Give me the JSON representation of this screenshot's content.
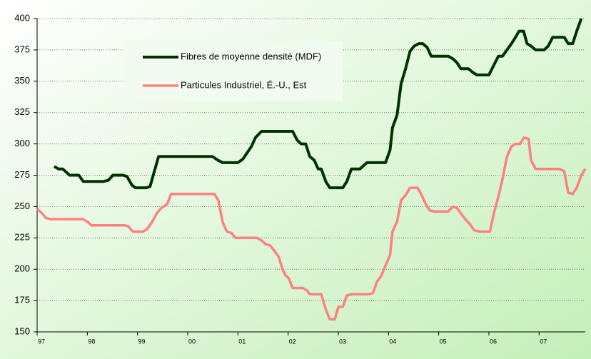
{
  "chart_data": {
    "type": "line",
    "xlim": [
      1997,
      2007.92
    ],
    "ylim": [
      150,
      400
    ],
    "yticks": [
      150,
      175,
      200,
      225,
      250,
      275,
      300,
      325,
      350,
      375,
      400
    ],
    "xticks": [
      {
        "value": 1997,
        "label": "97"
      },
      {
        "value": 1998,
        "label": "98"
      },
      {
        "value": 1999,
        "label": "99"
      },
      {
        "value": 2000,
        "label": "00"
      },
      {
        "value": 2001,
        "label": "01"
      },
      {
        "value": 2002,
        "label": "02"
      },
      {
        "value": 2003,
        "label": "03"
      },
      {
        "value": 2004,
        "label": "04"
      },
      {
        "value": 2005,
        "label": "05"
      },
      {
        "value": 2006,
        "label": "06"
      },
      {
        "value": 2007,
        "label": "07"
      }
    ],
    "grid": true,
    "series": [
      {
        "name": "Fibres de moyenne densité (MDF)",
        "color": "#003300",
        "x": [
          1997.34,
          1997.43,
          1997.51,
          1997.65,
          1997.83,
          1997.92,
          1998.32,
          1998.42,
          1998.51,
          1998.71,
          1998.79,
          1998.89,
          1998.96,
          1999.18,
          1999.25,
          1999.42,
          2000.49,
          2000.6,
          2000.7,
          2001.0,
          2001.1,
          2001.27,
          2001.35,
          2001.47,
          2002.09,
          2002.18,
          2002.26,
          2002.35,
          2002.43,
          2002.52,
          2002.6,
          2002.66,
          2002.75,
          2002.83,
          2003.09,
          2003.17,
          2003.26,
          2003.43,
          2003.57,
          2003.94,
          2004.03,
          2004.08,
          2004.17,
          2004.25,
          2004.34,
          2004.43,
          2004.51,
          2004.6,
          2004.68,
          2004.77,
          2004.85,
          2005.19,
          2005.28,
          2005.36,
          2005.44,
          2005.59,
          2005.68,
          2005.76,
          2006.0,
          2006.1,
          2006.19,
          2006.27,
          2006.36,
          2006.45,
          2006.53,
          2006.6,
          2006.69,
          2006.76,
          2006.84,
          2006.93,
          2007.1,
          2007.18,
          2007.27,
          2007.5,
          2007.58,
          2007.67,
          2007.75,
          2007.84
        ],
        "values": [
          282,
          280,
          280,
          275,
          275,
          270,
          270,
          271,
          275,
          275,
          274,
          267,
          265,
          265,
          266,
          290,
          290,
          287,
          285,
          285,
          288,
          298,
          305,
          310,
          310,
          303,
          300,
          300,
          290,
          287,
          280,
          280,
          270,
          265,
          265,
          270,
          280,
          280,
          285,
          285,
          295,
          313,
          323,
          348,
          360,
          374,
          378,
          380,
          380,
          377,
          370,
          370,
          368,
          365,
          360,
          360,
          357,
          355,
          355,
          363,
          370,
          370,
          375,
          380,
          385,
          390,
          390,
          380,
          378,
          375,
          375,
          378,
          385,
          385,
          380,
          380,
          390,
          400
        ]
      },
      {
        "name": "Particules Industriel, É.-U., Est",
        "color": "#ff8080",
        "x": [
          1997.0,
          1997.09,
          1997.17,
          1997.26,
          1997.91,
          1998.0,
          1998.08,
          1998.75,
          1998.82,
          1998.91,
          1999.11,
          1999.19,
          1999.28,
          1999.39,
          1999.48,
          1999.59,
          1999.67,
          2000.53,
          2000.61,
          2000.7,
          2000.78,
          2000.87,
          2000.95,
          2001.38,
          2001.47,
          2001.55,
          2001.64,
          2001.72,
          2001.81,
          2001.89,
          2001.95,
          2002.01,
          2002.09,
          2002.29,
          2002.38,
          2002.43,
          2002.66,
          2002.75,
          2002.83,
          2002.93,
          2003.0,
          2003.09,
          2003.17,
          2003.26,
          2003.6,
          2003.69,
          2003.77,
          2003.86,
          2003.94,
          2004.03,
          2004.08,
          2004.17,
          2004.25,
          2004.34,
          2004.43,
          2004.58,
          2004.65,
          2004.74,
          2004.82,
          2004.91,
          2005.19,
          2005.28,
          2005.36,
          2005.45,
          2005.53,
          2005.62,
          2005.71,
          2005.82,
          2006.02,
          2006.1,
          2006.19,
          2006.27,
          2006.36,
          2006.45,
          2006.53,
          2006.62,
          2006.7,
          2006.79,
          2006.84,
          2006.93,
          2007.41,
          2007.5,
          2007.58,
          2007.67,
          2007.75,
          2007.84,
          2007.92
        ],
        "values": [
          248,
          245,
          241,
          240,
          240,
          238,
          235,
          235,
          234,
          230,
          230,
          232,
          237,
          245,
          249,
          252,
          260,
          260,
          255,
          237,
          230,
          229,
          225,
          225,
          223,
          220,
          219,
          215,
          210,
          200,
          195,
          193,
          185,
          185,
          183,
          180,
          180,
          168,
          160,
          160,
          170,
          170,
          179,
          180,
          180,
          181,
          190,
          195,
          203,
          211,
          230,
          238,
          255,
          259,
          265,
          265,
          260,
          252,
          247,
          246,
          246,
          250,
          249,
          244,
          240,
          236,
          231,
          230,
          230,
          245,
          258,
          272,
          290,
          298,
          300,
          300,
          305,
          304,
          287,
          280,
          280,
          278,
          261,
          260,
          265,
          275,
          280
        ]
      }
    ]
  }
}
